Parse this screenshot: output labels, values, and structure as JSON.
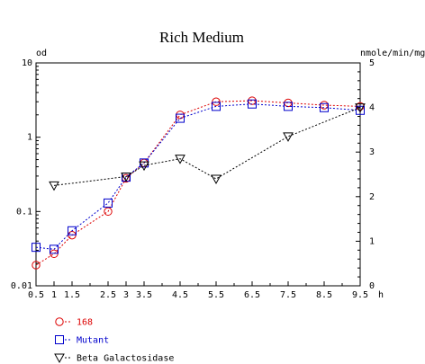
{
  "chart_data": {
    "type": "line",
    "title": "Rich Medium",
    "xlabel": "h",
    "ylabel_left": "od",
    "ylabel_right": "nmole/min/mg",
    "x_ticks": [
      "0.5",
      "1",
      "1.5",
      "2.5",
      "3",
      "3.5",
      "4.5",
      "5.5",
      "6.5",
      "7.5",
      "8.5",
      "9.5"
    ],
    "xlim": [
      0.5,
      9.5
    ],
    "y_left_scale": "log",
    "y_left_lim": [
      0.01,
      10
    ],
    "y_left_ticks": [
      "0.01",
      "0.1",
      "1",
      "10"
    ],
    "y_right_lim": [
      0,
      5
    ],
    "y_right_ticks": [
      "0",
      "1",
      "2",
      "3",
      "4",
      "5"
    ],
    "grid": false,
    "legend_position": "bottom-left",
    "series": [
      {
        "name": "168",
        "axis": "left",
        "marker": "circle",
        "color": "#dd0000",
        "x": [
          0.5,
          1,
          1.5,
          2.5,
          3,
          3.5,
          4.5,
          5.5,
          6.5,
          7.5,
          8.5,
          9.5
        ],
        "values": [
          0.019,
          0.027,
          0.048,
          0.1,
          0.28,
          0.45,
          2.0,
          3.0,
          3.1,
          2.9,
          2.7,
          2.6
        ]
      },
      {
        "name": "Mutant",
        "axis": "left",
        "marker": "square",
        "color": "#0000cc",
        "x": [
          0.5,
          1,
          1.5,
          2.5,
          3,
          3.5,
          4.5,
          5.5,
          6.5,
          7.5,
          8.5,
          9.5
        ],
        "values": [
          0.033,
          0.031,
          0.055,
          0.13,
          0.29,
          0.45,
          1.8,
          2.6,
          2.8,
          2.6,
          2.5,
          2.3
        ]
      },
      {
        "name": "Beta Galactosidase",
        "axis": "right",
        "marker": "triangle-down",
        "color": "#000000",
        "x": [
          1,
          3,
          3.5,
          4.5,
          5.5,
          7.5,
          9.5
        ],
        "values": [
          2.25,
          2.45,
          2.7,
          2.85,
          2.4,
          3.35,
          4.0
        ]
      }
    ]
  }
}
